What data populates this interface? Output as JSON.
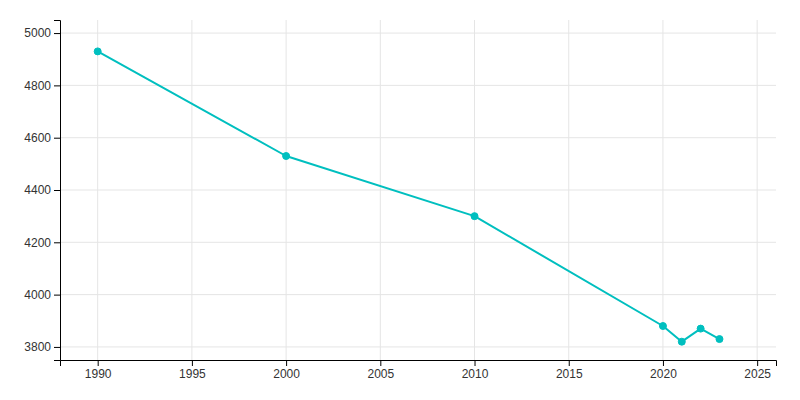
{
  "chart_data": {
    "type": "line",
    "x": [
      1990,
      2000,
      2010,
      2020,
      2021,
      2022,
      2023
    ],
    "values": [
      4930,
      4530,
      4300,
      3880,
      3820,
      3870,
      3830
    ],
    "color": "#00BFBF",
    "marker": "circle",
    "xlim": [
      1988,
      2026
    ],
    "ylim": [
      3750,
      5050
    ],
    "xticks": [
      1990,
      1995,
      2000,
      2005,
      2010,
      2015,
      2020,
      2025
    ],
    "yticks": [
      3800,
      4000,
      4200,
      4400,
      4600,
      4800,
      5000
    ],
    "grid": true
  }
}
